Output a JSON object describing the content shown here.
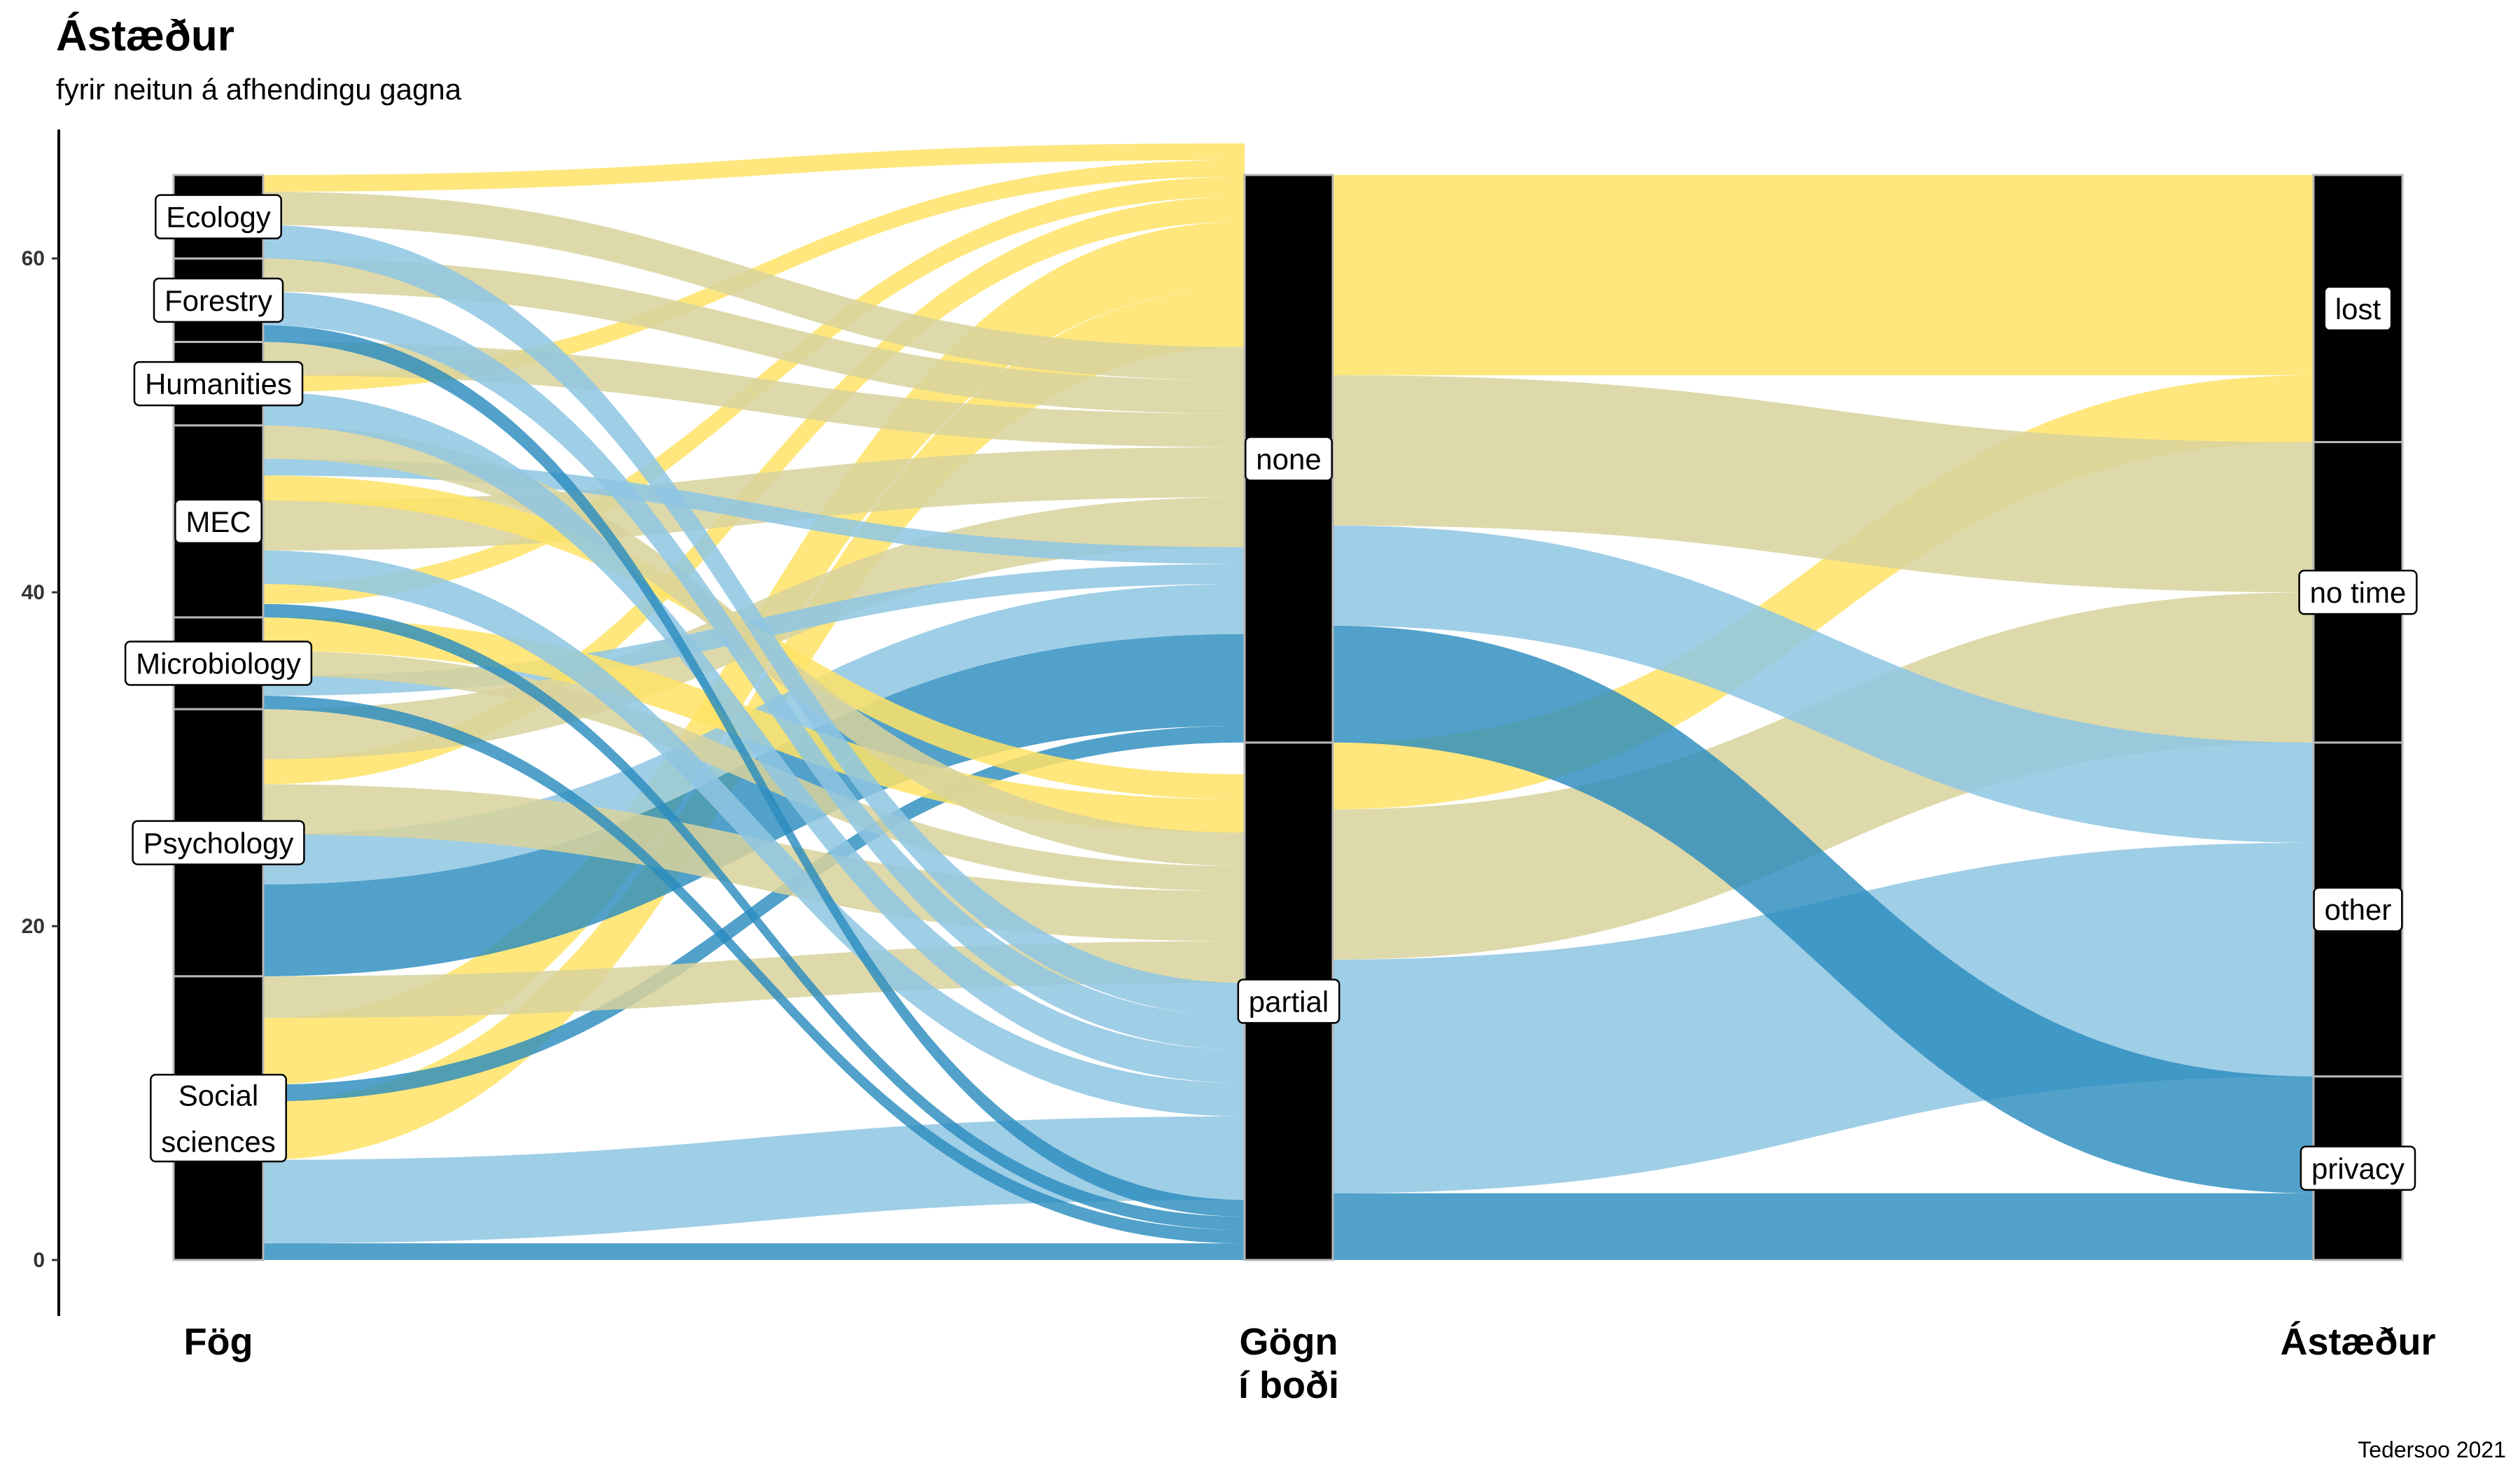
{
  "title": "Ástæður",
  "subtitle": "fyrir neitun á afhendingu gagna",
  "caption": "Tedersoo 2021",
  "chart_data": {
    "type": "alluvial",
    "axes": [
      "Fög",
      "Gögn\ní boði",
      "Ástæður"
    ],
    "ylim": [
      0,
      65
    ],
    "y_ticks": [
      0,
      20,
      40,
      60
    ],
    "strata": {
      "Fög": [
        {
          "name": "Social\nsciences",
          "value": 17
        },
        {
          "name": "Psychology",
          "value": 16
        },
        {
          "name": "Microbiology",
          "value": 5.5
        },
        {
          "name": "MEC",
          "value": 11.5
        },
        {
          "name": "Humanities",
          "value": 5
        },
        {
          "name": "Forestry",
          "value": 5
        },
        {
          "name": "Ecology",
          "value": 5
        }
      ],
      "Gögn í boði": [
        {
          "name": "partial",
          "value": 31
        },
        {
          "name": "none",
          "value": 34
        }
      ],
      "Ástæður": [
        {
          "name": "privacy",
          "value": 11
        },
        {
          "name": "other",
          "value": 20
        },
        {
          "name": "no time",
          "value": 18
        },
        {
          "name": "lost",
          "value": 16
        }
      ]
    },
    "flows_fog_gogn": [
      {
        "from": "Social sciences",
        "to": "partial",
        "reason": "privacy",
        "value": 1
      },
      {
        "from": "Social sciences",
        "to": "partial",
        "reason": "other",
        "value": 5
      },
      {
        "from": "Social sciences",
        "to": "none",
        "reason": "lost",
        "value": 3.5
      },
      {
        "from": "Social sciences",
        "to": "none",
        "reason": "privacy",
        "value": 1
      },
      {
        "from": "Social sciences",
        "to": "none",
        "reason": "lost",
        "value": 4
      },
      {
        "from": "Social sciences",
        "to": "partial",
        "reason": "no time",
        "value": 2.5
      },
      {
        "from": "Psychology",
        "to": "none",
        "reason": "privacy",
        "value": 5.5
      },
      {
        "from": "Psychology",
        "to": "none",
        "reason": "other",
        "value": 3
      },
      {
        "from": "Psychology",
        "to": "partial",
        "reason": "no time",
        "value": 3
      },
      {
        "from": "Psychology",
        "to": "none",
        "reason": "lost",
        "value": 1.5
      },
      {
        "from": "Psychology",
        "to": "none",
        "reason": "no time",
        "value": 3
      },
      {
        "from": "Microbiology",
        "to": "partial",
        "reason": "privacy",
        "value": 0.8
      },
      {
        "from": "Microbiology",
        "to": "none",
        "reason": "other",
        "value": 1.2
      },
      {
        "from": "Microbiology",
        "to": "partial",
        "reason": "no time",
        "value": 1.5
      },
      {
        "from": "Microbiology",
        "to": "partial",
        "reason": "lost",
        "value": 2
      },
      {
        "from": "MEC",
        "to": "partial",
        "reason": "privacy",
        "value": 0.8
      },
      {
        "from": "MEC",
        "to": "none",
        "reason": "lost",
        "value": 1.2
      },
      {
        "from": "MEC",
        "to": "partial",
        "reason": "other",
        "value": 2
      },
      {
        "from": "MEC",
        "to": "none",
        "reason": "no time",
        "value": 3
      },
      {
        "from": "MEC",
        "to": "partial",
        "reason": "lost",
        "value": 1.5
      },
      {
        "from": "MEC",
        "to": "none",
        "reason": "other",
        "value": 1
      },
      {
        "from": "MEC",
        "to": "partial",
        "reason": "no time",
        "value": 2
      },
      {
        "from": "Humanities",
        "to": "partial",
        "reason": "other",
        "value": 2
      },
      {
        "from": "Humanities",
        "to": "none",
        "reason": "lost",
        "value": 1
      },
      {
        "from": "Humanities",
        "to": "none",
        "reason": "no time",
        "value": 2
      },
      {
        "from": "Forestry",
        "to": "partial",
        "reason": "privacy",
        "value": 1
      },
      {
        "from": "Forestry",
        "to": "partial",
        "reason": "other",
        "value": 2
      },
      {
        "from": "Forestry",
        "to": "none",
        "reason": "no time",
        "value": 2
      },
      {
        "from": "Ecology",
        "to": "partial",
        "reason": "other",
        "value": 2
      },
      {
        "from": "Ecology",
        "to": "none",
        "reason": "no time",
        "value": 2
      },
      {
        "from": "Ecology",
        "to": "none",
        "reason": "lost",
        "value": 1
      }
    ],
    "flows_gogn_astaedur": [
      {
        "from": "partial",
        "to": "privacy",
        "value": 4
      },
      {
        "from": "partial",
        "to": "other",
        "value": 14
      },
      {
        "from": "partial",
        "to": "no time",
        "value": 9
      },
      {
        "from": "partial",
        "to": "lost",
        "value": 4
      },
      {
        "from": "none",
        "to": "privacy",
        "value": 7
      },
      {
        "from": "none",
        "to": "other",
        "value": 6
      },
      {
        "from": "none",
        "to": "no time",
        "value": 9
      },
      {
        "from": "none",
        "to": "lost",
        "value": 12
      }
    ],
    "colors": {
      "privacy": "#2b8cbe",
      "other": "#8ec5e3",
      "no time": "#d8d29c",
      "lost": "#ffe366"
    },
    "grid": false
  }
}
